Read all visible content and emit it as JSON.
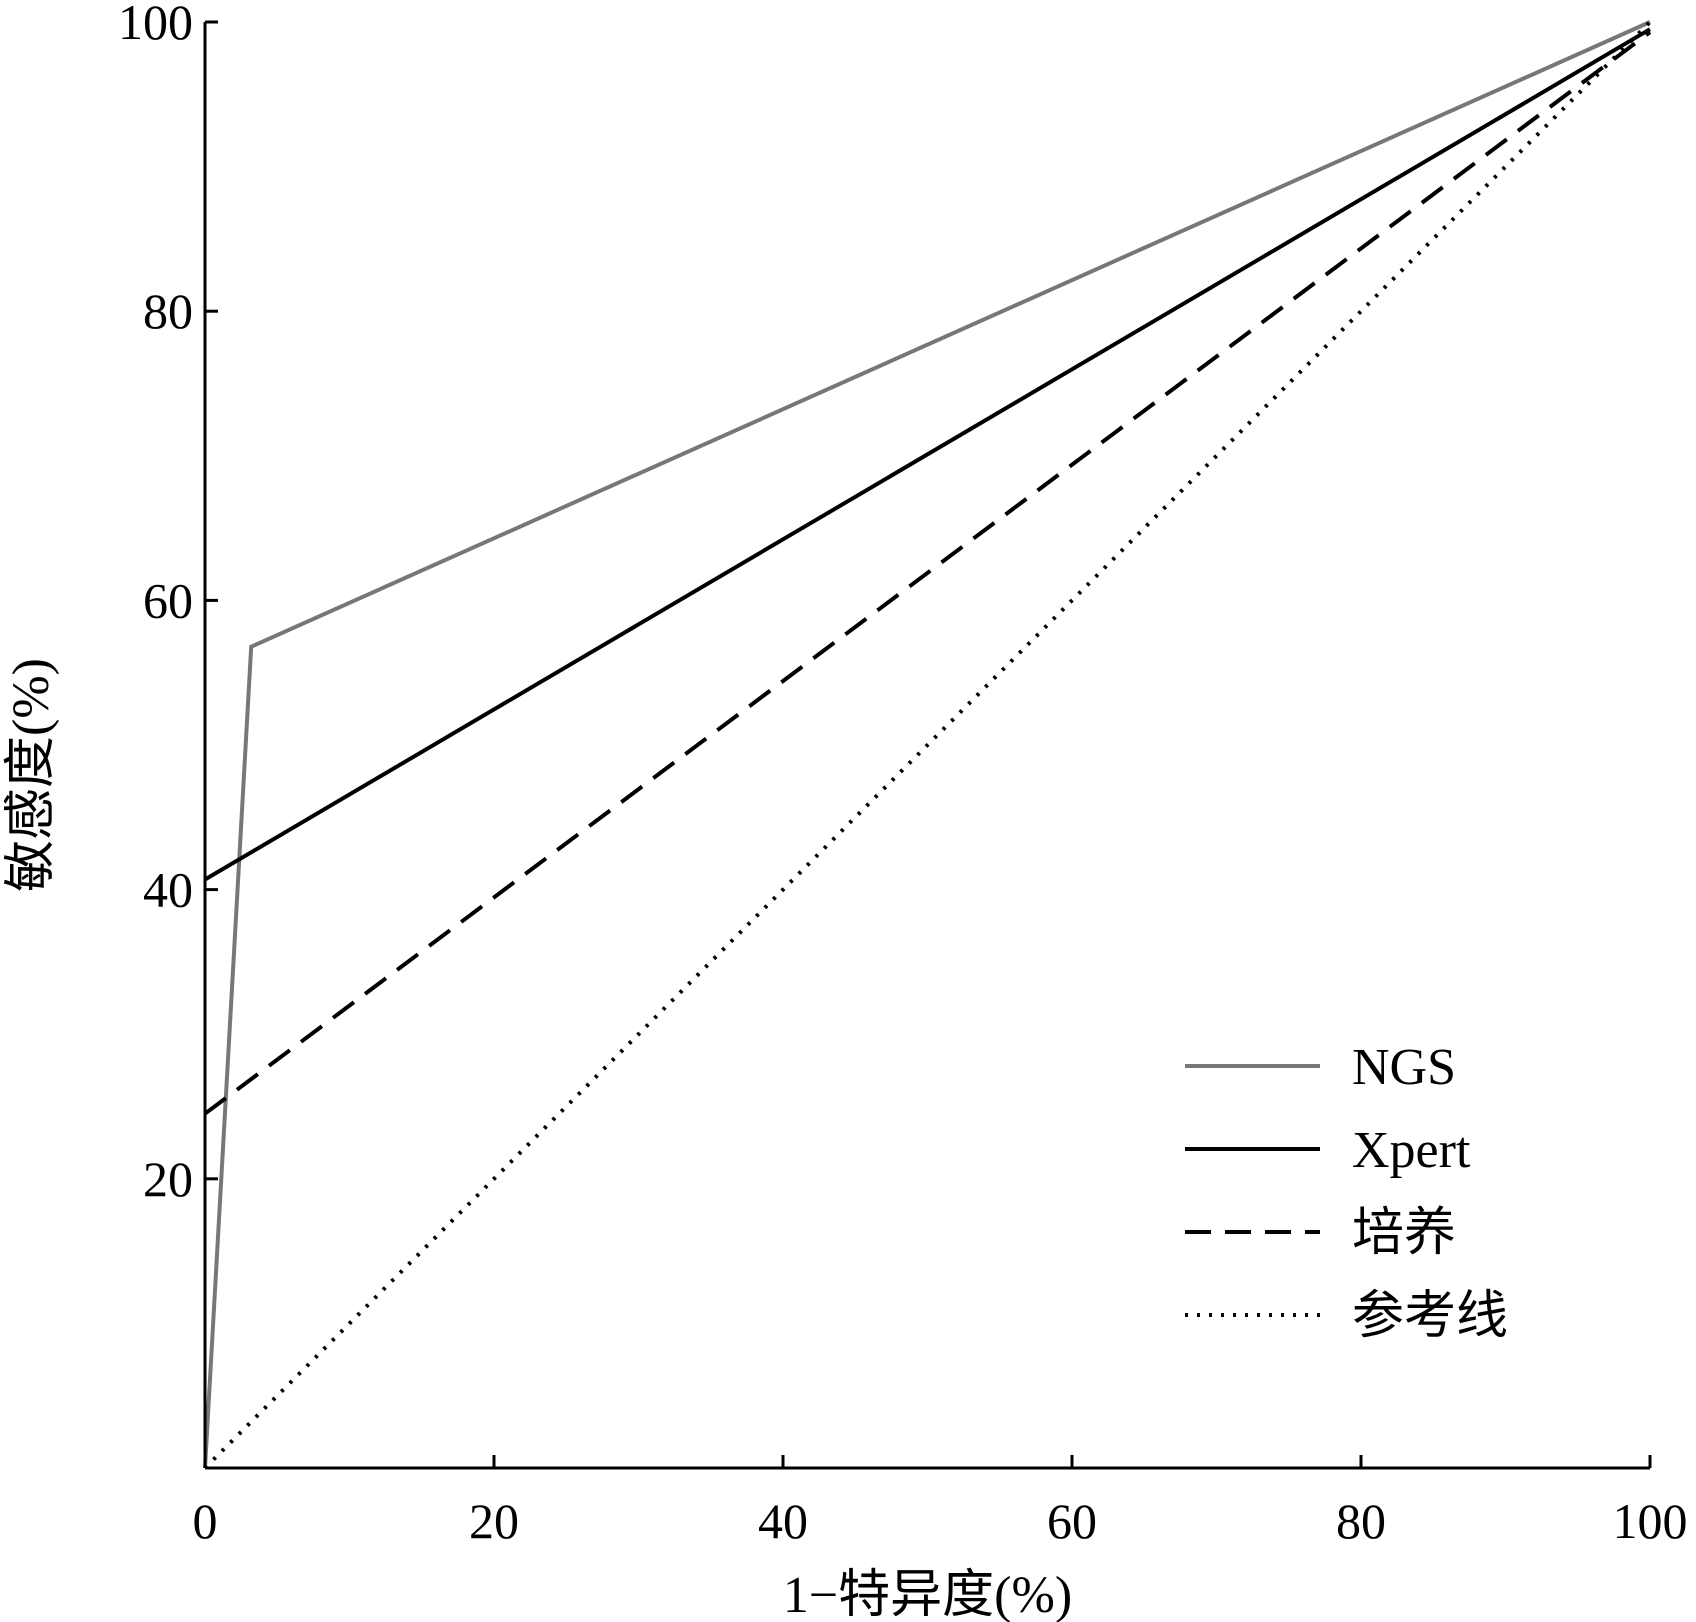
{
  "chart_data": {
    "type": "line",
    "title": "",
    "xlabel": "1−特异度(%)",
    "ylabel": "敏感度(%)",
    "xlim": [
      0,
      100
    ],
    "ylim": [
      0,
      100
    ],
    "xticks": [
      0,
      20,
      40,
      60,
      80,
      100
    ],
    "yticks": [
      20,
      40,
      60,
      80,
      100
    ],
    "xtick_labels": [
      "0",
      "20",
      "40",
      "60",
      "80",
      "100"
    ],
    "ytick_labels": [
      "20",
      "40",
      "60",
      "80",
      "100"
    ],
    "grid": false,
    "legend_position": "bottom-right",
    "series": [
      {
        "name": "NGS",
        "style": "solid",
        "color": "#777777",
        "x": [
          0,
          3.2,
          100
        ],
        "y": [
          0,
          56.8,
          100
        ]
      },
      {
        "name": "Xpert",
        "style": "solid",
        "color": "#000000",
        "x": [
          0,
          100
        ],
        "y": [
          40.7,
          99.5
        ]
      },
      {
        "name": "培养",
        "style": "dashed",
        "color": "#000000",
        "x": [
          0,
          100
        ],
        "y": [
          24.5,
          99.3
        ]
      },
      {
        "name": "参考线",
        "style": "dotted",
        "color": "#000000",
        "x": [
          0,
          100
        ],
        "y": [
          0,
          100
        ]
      }
    ]
  }
}
